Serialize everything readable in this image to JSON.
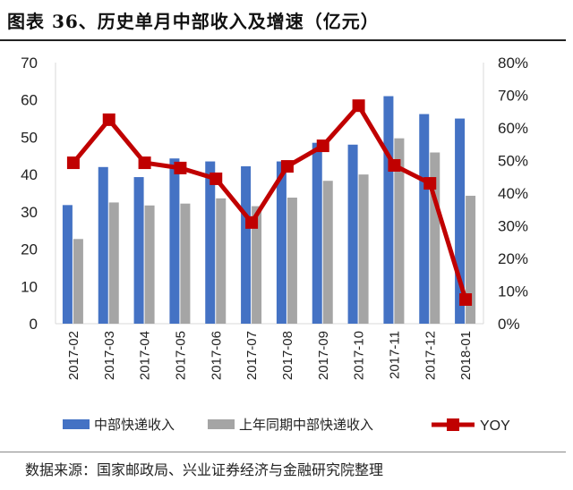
{
  "title": "图表 36、历史单月中部收入及增速（亿元）",
  "source": "数据来源：国家邮政局、兴业证券经济与金融研究院整理",
  "chart_data": {
    "type": "bar+line",
    "title": "图表 36、历史单月中部收入及增速（亿元）",
    "categories": [
      "2017-02",
      "2017-03",
      "2017-04",
      "2017-05",
      "2017-06",
      "2017-07",
      "2017-08",
      "2017-09",
      "2017-10",
      "2017-11",
      "2017-12",
      "2018-01"
    ],
    "series": [
      {
        "name": "中部快递收入",
        "type": "bar",
        "axis": "left",
        "color": "#4472C4",
        "values": [
          31.8,
          42.0,
          39.3,
          44.3,
          43.5,
          42.2,
          43.5,
          48.5,
          48.0,
          61.0,
          56.2,
          55.0
        ]
      },
      {
        "name": "上年同期中部快递收入",
        "type": "bar",
        "axis": "left",
        "color": "#A5A5A5",
        "values": [
          22.7,
          32.5,
          31.7,
          32.2,
          33.6,
          31.5,
          33.8,
          38.3,
          40.0,
          49.7,
          45.9,
          34.3
        ]
      },
      {
        "name": "YOY",
        "type": "line",
        "axis": "right",
        "color": "#C00000",
        "values": [
          49.3,
          62.5,
          49.3,
          47.7,
          44.4,
          31.0,
          48.2,
          54.5,
          66.8,
          48.5,
          43.0,
          7.4
        ]
      }
    ],
    "y_left": {
      "min": 0,
      "max": 70,
      "ticks": [
        "0",
        "10",
        "20",
        "30",
        "40",
        "50",
        "60",
        "70"
      ]
    },
    "y_right": {
      "min": 0,
      "max": 80,
      "ticks": [
        "0%",
        "10%",
        "20%",
        "30%",
        "40%",
        "50%",
        "60%",
        "70%",
        "80%"
      ]
    },
    "grid": false,
    "legend": "bottom"
  }
}
